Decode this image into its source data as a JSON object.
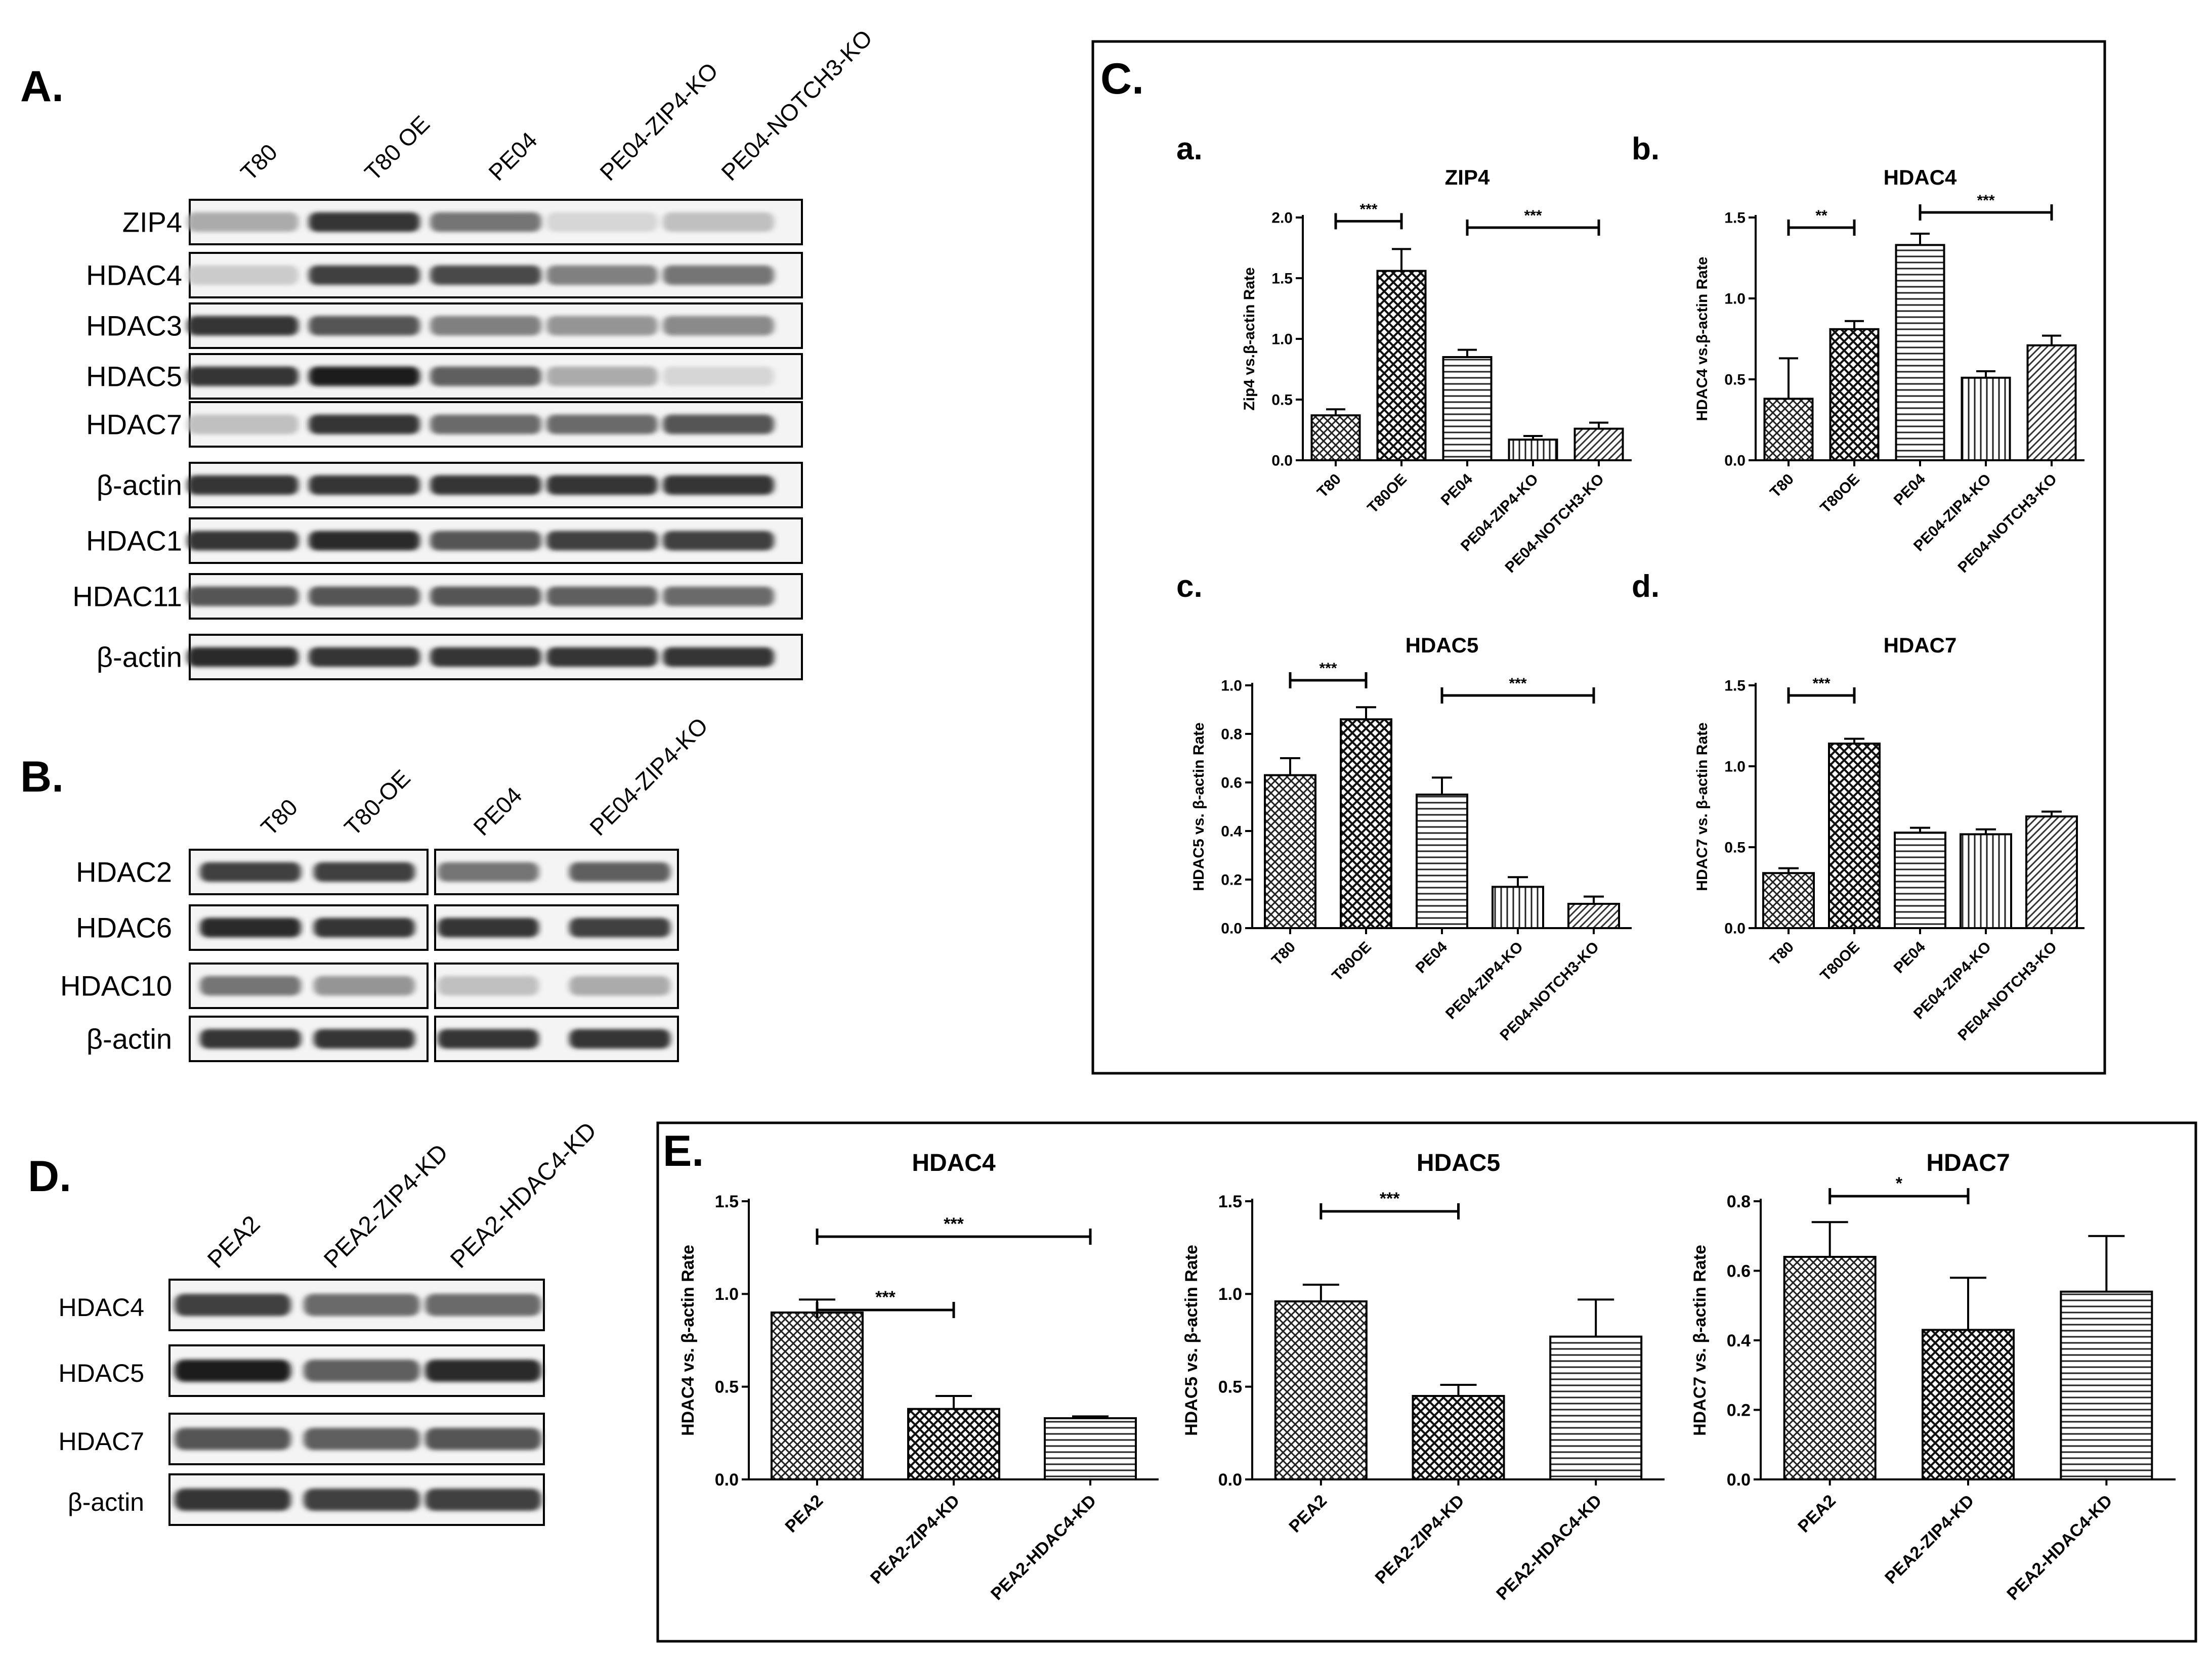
{
  "panel_letters": {
    "A": "A.",
    "B": "B.",
    "C": "C.",
    "D": "D.",
    "E": "E."
  },
  "blot_A": {
    "lanes": [
      "T80",
      "T80 OE",
      "PE04",
      "PE04-ZIP4-KO",
      "PE04-NOTCH3-KO"
    ],
    "rows": [
      "ZIP4",
      "HDAC4",
      "HDAC3",
      "HDAC5",
      "HDAC7",
      "β-actin",
      "HDAC1",
      "HDAC11",
      "β-actin"
    ],
    "intensity": [
      [
        0.3,
        0.85,
        0.55,
        0.1,
        0.2
      ],
      [
        0.15,
        0.8,
        0.75,
        0.5,
        0.55
      ],
      [
        0.85,
        0.7,
        0.5,
        0.4,
        0.45
      ],
      [
        0.85,
        0.95,
        0.65,
        0.3,
        0.1
      ],
      [
        0.2,
        0.85,
        0.6,
        0.6,
        0.7
      ],
      [
        0.85,
        0.85,
        0.85,
        0.85,
        0.85
      ],
      [
        0.85,
        0.9,
        0.7,
        0.8,
        0.8
      ],
      [
        0.7,
        0.7,
        0.7,
        0.65,
        0.6
      ],
      [
        0.9,
        0.85,
        0.85,
        0.85,
        0.85
      ]
    ]
  },
  "blot_B": {
    "lanes": [
      "T80",
      "T80-OE",
      "PE04",
      "PE04-ZIP4-KO"
    ],
    "rows": [
      "HDAC2",
      "HDAC6",
      "HDAC10",
      "β-actin"
    ],
    "intensity": [
      [
        0.8,
        0.8,
        0.55,
        0.65
      ],
      [
        0.9,
        0.85,
        0.85,
        0.8
      ],
      [
        0.55,
        0.4,
        0.2,
        0.3
      ],
      [
        0.85,
        0.85,
        0.85,
        0.85
      ]
    ]
  },
  "blot_D": {
    "lanes": [
      "PEA2",
      "PEA2-ZIP4-KD",
      "PEA2-HDAC4-KD"
    ],
    "rows": [
      "HDAC4",
      "HDAC5",
      "HDAC7",
      "β-actin"
    ],
    "intensity": [
      [
        0.8,
        0.6,
        0.6
      ],
      [
        0.95,
        0.65,
        0.9
      ],
      [
        0.7,
        0.65,
        0.7
      ],
      [
        0.85,
        0.8,
        0.8
      ]
    ]
  },
  "panel_C_labels": [
    "a.",
    "b.",
    "c.",
    "d."
  ],
  "chart_data": [
    {
      "id": "C-a",
      "type": "bar",
      "title": "ZIP4",
      "ylabel": "Zip4 vs.β-actin Rate",
      "categories": [
        "T80",
        "T80OE",
        "PE04",
        "PE04-ZIP4-KO",
        "PE04-NOTCH3-KO"
      ],
      "values": [
        0.37,
        1.56,
        0.85,
        0.17,
        0.26
      ],
      "errors": [
        0.05,
        0.18,
        0.06,
        0.03,
        0.05
      ],
      "ylim": [
        0,
        2.0
      ],
      "yticks": [
        "0.0",
        "0.5",
        "1.0",
        "1.5",
        "2.0"
      ],
      "significance": [
        {
          "from": 0,
          "to": 1,
          "label": "***"
        },
        {
          "from": 2,
          "to": 4,
          "label": "***"
        }
      ]
    },
    {
      "id": "C-b",
      "type": "bar",
      "title": "HDAC4",
      "ylabel": "HDAC4 vs.β-actin Rate",
      "categories": [
        "T80",
        "T80OE",
        "PE04",
        "PE04-ZIP4-KO",
        "PE04-NOTCH3-KO"
      ],
      "values": [
        0.38,
        0.81,
        1.33,
        0.51,
        0.71
      ],
      "errors": [
        0.25,
        0.05,
        0.07,
        0.04,
        0.06
      ],
      "ylim": [
        0,
        1.5
      ],
      "yticks": [
        "0.0",
        "0.5",
        "1.0",
        "1.5"
      ],
      "significance": [
        {
          "from": 0,
          "to": 1,
          "label": "**"
        },
        {
          "from": 2,
          "to": 4,
          "label": "***"
        }
      ]
    },
    {
      "id": "C-c",
      "type": "bar",
      "title": "HDAC5",
      "ylabel": "HDAC5 vs. β-actin Rate",
      "categories": [
        "T80",
        "T80OE",
        "PE04",
        "PE04-ZIP4-KO",
        "PE04-NOTCH3-KO"
      ],
      "values": [
        0.63,
        0.86,
        0.55,
        0.17,
        0.1
      ],
      "errors": [
        0.07,
        0.05,
        0.07,
        0.04,
        0.03
      ],
      "ylim": [
        0,
        1.0
      ],
      "yticks": [
        "0.0",
        "0.2",
        "0.4",
        "0.6",
        "0.8",
        "1.0"
      ],
      "significance": [
        {
          "from": 0,
          "to": 1,
          "label": "***"
        },
        {
          "from": 2,
          "to": 4,
          "label": "***"
        }
      ]
    },
    {
      "id": "C-d",
      "type": "bar",
      "title": "HDAC7",
      "ylabel": "HDAC7 vs. β-actin Rate",
      "categories": [
        "T80",
        "T80OE",
        "PE04",
        "PE04-ZIP4-KO",
        "PE04-NOTCH3-KO"
      ],
      "values": [
        0.34,
        1.14,
        0.59,
        0.58,
        0.69
      ],
      "errors": [
        0.03,
        0.03,
        0.03,
        0.03,
        0.03
      ],
      "ylim": [
        0,
        1.5
      ],
      "yticks": [
        "0.0",
        "0.5",
        "1.0",
        "1.5"
      ],
      "significance": [
        {
          "from": 0,
          "to": 1,
          "label": "***"
        }
      ]
    },
    {
      "id": "E-1",
      "type": "bar",
      "title": "HDAC4",
      "ylabel": "HDAC4 vs. β-actin Rate",
      "categories": [
        "PEA2",
        "PEA2-ZIP4-KD",
        "PEA2-HDAC4-KD"
      ],
      "values": [
        0.9,
        0.38,
        0.33
      ],
      "errors": [
        0.07,
        0.07,
        0.01
      ],
      "ylim": [
        0,
        1.5
      ],
      "yticks": [
        "0.0",
        "0.5",
        "1.0",
        "1.5"
      ],
      "significance": [
        {
          "from": 0,
          "to": 2,
          "label": "***"
        },
        {
          "from": 0,
          "to": 1,
          "label": "***"
        }
      ]
    },
    {
      "id": "E-2",
      "type": "bar",
      "title": "HDAC5",
      "ylabel": "HDAC5 vs. β-actin Rate",
      "categories": [
        "PEA2",
        "PEA2-ZIP4-KD",
        "PEA2-HDAC4-KD"
      ],
      "values": [
        0.96,
        0.45,
        0.77
      ],
      "errors": [
        0.09,
        0.06,
        0.2
      ],
      "ylim": [
        0,
        1.5
      ],
      "yticks": [
        "0.0",
        "0.5",
        "1.0",
        "1.5"
      ],
      "significance": [
        {
          "from": 0,
          "to": 1,
          "label": "***"
        }
      ]
    },
    {
      "id": "E-3",
      "type": "bar",
      "title": "HDAC7",
      "ylabel": "HDAC7 vs. β-actin Rate",
      "categories": [
        "PEA2",
        "PEA2-ZIP4-KD",
        "PEA2-HDAC4-KD"
      ],
      "values": [
        0.64,
        0.43,
        0.54
      ],
      "errors": [
        0.1,
        0.15,
        0.16
      ],
      "ylim": [
        0,
        0.8
      ],
      "yticks": [
        "0.0",
        "0.2",
        "0.4",
        "0.6",
        "0.8"
      ],
      "significance": [
        {
          "from": 0,
          "to": 1,
          "label": "*"
        }
      ]
    }
  ]
}
